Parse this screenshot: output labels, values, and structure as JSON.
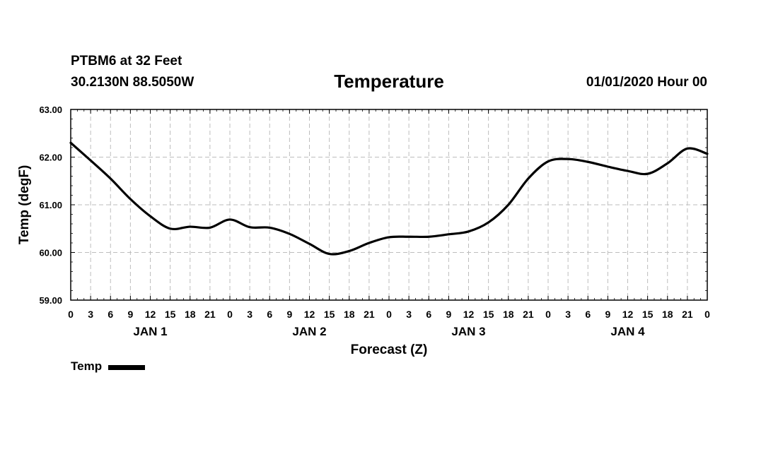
{
  "header": {
    "station": "PTBM6 at 32 Feet",
    "coords": "30.2130N 88.5050W",
    "title": "Temperature",
    "datetime": "01/01/2020 Hour 00"
  },
  "chart_data": {
    "type": "line",
    "title": "Temperature",
    "xlabel": "Forecast (Z)",
    "ylabel": "Temp (degF)",
    "ylim": [
      59.0,
      63.0
    ],
    "yticks": [
      "59.00",
      "60.00",
      "61.00",
      "62.00",
      "63.00"
    ],
    "xlim": [
      0,
      96
    ],
    "xtick_labels": [
      "0",
      "3",
      "6",
      "9",
      "12",
      "15",
      "18",
      "21",
      "0",
      "3",
      "6",
      "9",
      "12",
      "15",
      "18",
      "21",
      "0",
      "3",
      "6",
      "9",
      "12",
      "15",
      "18",
      "21",
      "0",
      "3",
      "6",
      "9",
      "12",
      "15",
      "18",
      "21",
      "0"
    ],
    "day_labels": [
      {
        "label": "JAN 1",
        "hour": 12
      },
      {
        "label": "JAN 2",
        "hour": 36
      },
      {
        "label": "JAN 3",
        "hour": 60
      },
      {
        "label": "JAN 4",
        "hour": 84
      }
    ],
    "grid": true,
    "legend": [
      {
        "name": "Temp",
        "color": "#000000"
      }
    ],
    "series": [
      {
        "name": "Temp",
        "x": [
          0,
          3,
          6,
          9,
          12,
          15,
          18,
          21,
          24,
          27,
          30,
          33,
          36,
          39,
          42,
          45,
          48,
          51,
          54,
          57,
          60,
          63,
          66,
          69,
          72,
          75,
          78,
          81,
          84,
          87,
          90,
          93,
          96
        ],
        "values": [
          62.3,
          61.93,
          61.55,
          61.12,
          60.76,
          60.5,
          60.54,
          60.52,
          60.69,
          60.53,
          60.52,
          60.39,
          60.18,
          59.97,
          60.03,
          60.2,
          60.32,
          60.33,
          60.33,
          60.38,
          60.44,
          60.63,
          61.0,
          61.55,
          61.91,
          61.96,
          61.9,
          61.8,
          61.71,
          61.65,
          61.87,
          62.18,
          62.07
        ]
      }
    ]
  }
}
